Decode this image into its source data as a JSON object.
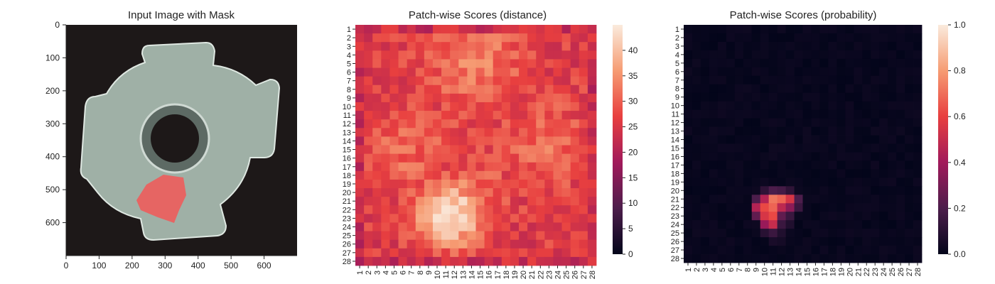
{
  "chart_data": [
    {
      "type": "image",
      "title": "Input Image with Mask",
      "xlim": [
        0,
        700
      ],
      "ylim": [
        700,
        0
      ],
      "x_ticks": [
        "0",
        "100",
        "200",
        "300",
        "400",
        "500",
        "600"
      ],
      "y_ticks": [
        "0",
        "100",
        "200",
        "300",
        "400",
        "500",
        "600"
      ],
      "mask_color": "#f05a5a",
      "object_color": "#9fb0a6",
      "background_color": "#1d1818"
    },
    {
      "type": "heatmap",
      "title": "Patch-wise Scores (distance)",
      "rows": [
        "1",
        "2",
        "3",
        "4",
        "5",
        "6",
        "7",
        "8",
        "9",
        "10",
        "11",
        "12",
        "13",
        "14",
        "15",
        "16",
        "17",
        "18",
        "19",
        "20",
        "21",
        "22",
        "23",
        "24",
        "25",
        "26",
        "27",
        "28"
      ],
      "cols": [
        "1",
        "2",
        "3",
        "4",
        "5",
        "6",
        "7",
        "8",
        "9",
        "10",
        "11",
        "12",
        "13",
        "14",
        "15",
        "16",
        "17",
        "18",
        "19",
        "20",
        "21",
        "22",
        "23",
        "24",
        "25",
        "26",
        "27",
        "28"
      ],
      "base_value": 26,
      "hotspots": [
        {
          "row": 22.5,
          "col": 11.5,
          "peak": 45,
          "radius": 2.6
        },
        {
          "row": 5,
          "col": 14.5,
          "peak": 33,
          "radius": 4.0
        },
        {
          "row": 15,
          "col": 6.5,
          "peak": 31,
          "radius": 3.5
        },
        {
          "row": 14.5,
          "col": 22.5,
          "peak": 31,
          "radius": 3.5
        },
        {
          "row": 19,
          "col": 14.5,
          "peak": 30,
          "radius": 3.0
        }
      ],
      "edge_value": 20,
      "colorbar": {
        "min": 0,
        "max": 45,
        "ticks": [
          "0",
          "5",
          "10",
          "15",
          "20",
          "25",
          "30",
          "35",
          "40"
        ]
      },
      "colormap": "rocket"
    },
    {
      "type": "heatmap",
      "title": "Patch-wise Scores (probability)",
      "rows": [
        "1",
        "2",
        "3",
        "4",
        "5",
        "6",
        "7",
        "8",
        "9",
        "10",
        "11",
        "12",
        "13",
        "14",
        "15",
        "16",
        "17",
        "18",
        "19",
        "20",
        "21",
        "22",
        "23",
        "24",
        "25",
        "26",
        "27",
        "28"
      ],
      "cols": [
        "1",
        "2",
        "3",
        "4",
        "5",
        "6",
        "7",
        "8",
        "9",
        "10",
        "11",
        "12",
        "13",
        "14",
        "15",
        "16",
        "17",
        "18",
        "19",
        "20",
        "21",
        "22",
        "23",
        "24",
        "25",
        "26",
        "27",
        "28"
      ],
      "cells": [
        {
          "row": 21,
          "col": 10,
          "value": 0.45
        },
        {
          "row": 21,
          "col": 11,
          "value": 0.72
        },
        {
          "row": 21,
          "col": 12,
          "value": 0.68
        },
        {
          "row": 21,
          "col": 13,
          "value": 0.55
        },
        {
          "row": 21,
          "col": 9,
          "value": 0.2
        },
        {
          "row": 21,
          "col": 14,
          "value": 0.2
        },
        {
          "row": 20,
          "col": 10,
          "value": 0.12
        },
        {
          "row": 20,
          "col": 11,
          "value": 0.2
        },
        {
          "row": 20,
          "col": 12,
          "value": 0.18
        },
        {
          "row": 20,
          "col": 13,
          "value": 0.12
        },
        {
          "row": 22,
          "col": 9,
          "value": 0.45
        },
        {
          "row": 22,
          "col": 10,
          "value": 0.62
        },
        {
          "row": 22,
          "col": 11,
          "value": 0.68
        },
        {
          "row": 22,
          "col": 12,
          "value": 0.48
        },
        {
          "row": 22,
          "col": 13,
          "value": 0.35
        },
        {
          "row": 22,
          "col": 14,
          "value": 0.15
        },
        {
          "row": 23,
          "col": 9,
          "value": 0.25
        },
        {
          "row": 23,
          "col": 10,
          "value": 0.55
        },
        {
          "row": 23,
          "col": 11,
          "value": 0.62
        },
        {
          "row": 23,
          "col": 12,
          "value": 0.25
        },
        {
          "row": 23,
          "col": 13,
          "value": 0.15
        },
        {
          "row": 24,
          "col": 10,
          "value": 0.38
        },
        {
          "row": 24,
          "col": 11,
          "value": 0.5
        },
        {
          "row": 24,
          "col": 12,
          "value": 0.15
        },
        {
          "row": 24,
          "col": 13,
          "value": 0.08
        },
        {
          "row": 25,
          "col": 10,
          "value": 0.1
        },
        {
          "row": 25,
          "col": 11,
          "value": 0.15
        },
        {
          "row": 25,
          "col": 12,
          "value": 0.08
        },
        {
          "row": 26,
          "col": 11,
          "value": 0.06
        },
        {
          "row": 26,
          "col": 12,
          "value": 0.05
        }
      ],
      "colorbar": {
        "min": 0,
        "max": 1,
        "ticks": [
          "0.0",
          "0.2",
          "0.4",
          "0.6",
          "0.8",
          "1.0"
        ]
      },
      "colormap": "rocket"
    }
  ]
}
